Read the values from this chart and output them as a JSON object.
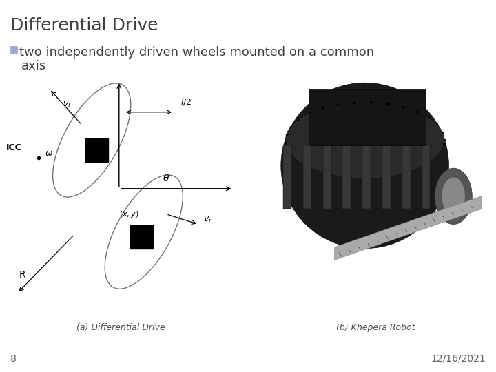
{
  "title": "Differential Drive",
  "title_color": "#404040",
  "title_fontsize": 18,
  "bullet_square_color": "#9BA7C8",
  "bullet_text_line1": "two independently driven wheels mounted on a common",
  "bullet_text_line2": "axis",
  "bullet_fontsize": 13,
  "bullet_color": "#404040",
  "caption_a": "(a) Differential Drive",
  "caption_b": "(b) Khepera Robot",
  "caption_fontsize": 9,
  "page_number": "8",
  "date_text": "12/16/2021",
  "footer_fontsize": 10,
  "bg_color": "#ffffff"
}
